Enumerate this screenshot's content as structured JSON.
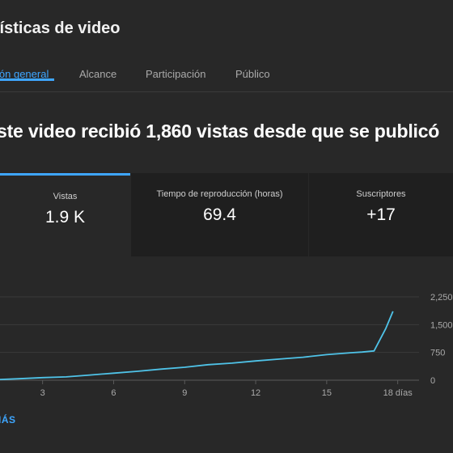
{
  "header": {
    "title": "lísticas de video"
  },
  "tabs": [
    {
      "label": "ión general",
      "active": true
    },
    {
      "label": "Alcance",
      "active": false
    },
    {
      "label": "Participación",
      "active": false
    },
    {
      "label": "Público",
      "active": false
    }
  ],
  "headline": "ste video recibió 1,860 vistas desde que se publicó",
  "metrics": [
    {
      "label": "Vistas",
      "value": "1.9 K",
      "active": true
    },
    {
      "label": "Tiempo de reproducción (horas)",
      "value": "69.4",
      "active": false
    },
    {
      "label": "Suscriptores",
      "value": "+17",
      "active": false
    }
  ],
  "chart_data": {
    "type": "line",
    "title": "",
    "xlabel": "",
    "ylabel": "",
    "x_ticks": [
      "3",
      "6",
      "9",
      "12",
      "15",
      "18 días"
    ],
    "x_tick_values": [
      3,
      6,
      9,
      12,
      15,
      18
    ],
    "y_ticks": [
      "0",
      "750",
      "1,500",
      "2,250"
    ],
    "y_tick_values": [
      0,
      750,
      1500,
      2250
    ],
    "xlim": [
      1.2,
      18.9
    ],
    "ylim": [
      0,
      2250
    ],
    "grid": true,
    "line_color": "#4fc3e8",
    "series": [
      {
        "x": [
          1.2,
          2,
          3,
          4,
          5,
          6,
          7,
          8,
          9,
          10,
          11,
          12,
          13,
          14,
          15,
          16,
          16.5,
          17,
          17.5,
          17.8
        ],
        "values": [
          20,
          40,
          70,
          90,
          140,
          190,
          240,
          300,
          350,
          420,
          460,
          520,
          570,
          620,
          690,
          740,
          760,
          790,
          1400,
          1860
        ]
      }
    ]
  },
  "footer": {
    "more_label": "IÁS"
  }
}
